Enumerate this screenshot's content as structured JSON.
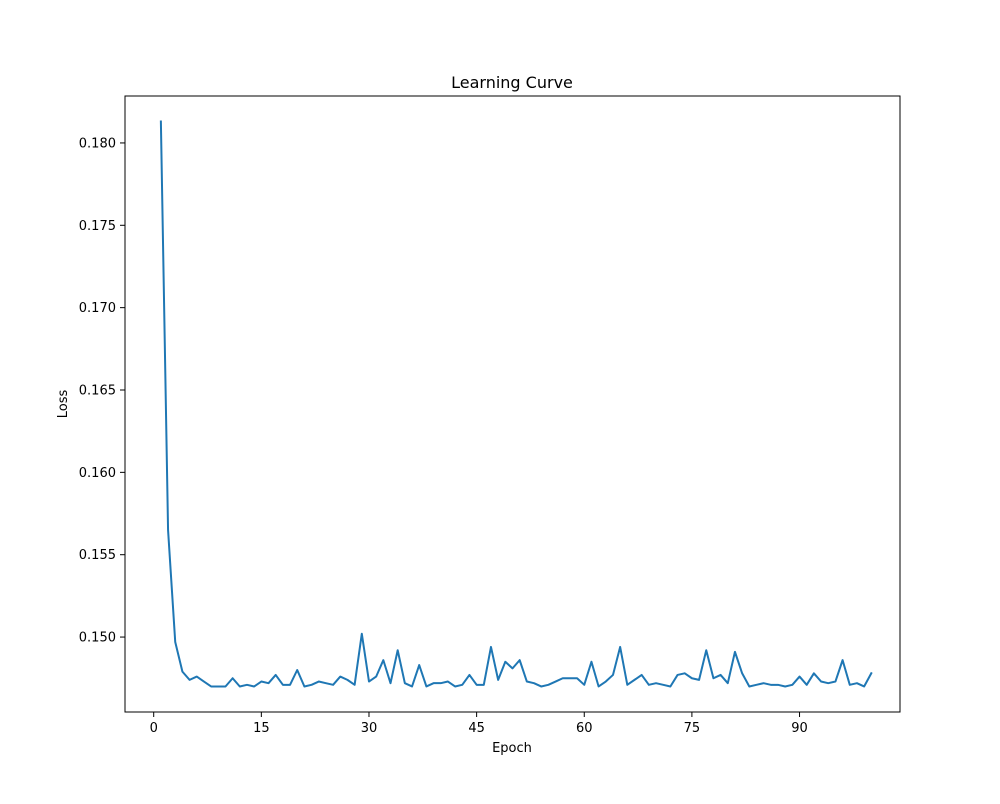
{
  "chart_data": {
    "type": "line",
    "title": "Learning Curve",
    "xlabel": "Epoch",
    "ylabel": "Loss",
    "xlim": [
      -4.0,
      104.0
    ],
    "ylim": [
      0.14545,
      0.18285
    ],
    "xticks": [
      0,
      15,
      30,
      45,
      60,
      75,
      90
    ],
    "yticks": [
      0.15,
      0.155,
      0.16,
      0.165,
      0.17,
      0.175,
      0.18
    ],
    "grid": false,
    "colors": {
      "line": "#1f77b4"
    },
    "series": [
      {
        "x": [
          1,
          2,
          3,
          4,
          5,
          6,
          7,
          8,
          9,
          10,
          11,
          12,
          13,
          14,
          15,
          16,
          17,
          18,
          19,
          20,
          21,
          22,
          23,
          24,
          25,
          26,
          27,
          28,
          29,
          30,
          31,
          32,
          33,
          34,
          35,
          36,
          37,
          38,
          39,
          40,
          41,
          42,
          43,
          44,
          45,
          46,
          47,
          48,
          49,
          50,
          51,
          52,
          53,
          54,
          55,
          56,
          57,
          58,
          59,
          60,
          61,
          62,
          63,
          64,
          65,
          66,
          67,
          68,
          69,
          70,
          71,
          72,
          73,
          74,
          75,
          76,
          77,
          78,
          79,
          80,
          81,
          82,
          83,
          84,
          85,
          86,
          87,
          88,
          89,
          90,
          91,
          92,
          93,
          94,
          95,
          96,
          97,
          98,
          99,
          100
        ],
        "y": [
          0.1813,
          0.1565,
          0.1497,
          0.1479,
          0.1474,
          0.1476,
          0.1473,
          0.147,
          0.147,
          0.147,
          0.1475,
          0.147,
          0.1471,
          0.147,
          0.1473,
          0.1472,
          0.1477,
          0.1471,
          0.1471,
          0.148,
          0.147,
          0.1471,
          0.1473,
          0.1472,
          0.1471,
          0.1476,
          0.1474,
          0.1471,
          0.1502,
          0.1473,
          0.1476,
          0.1486,
          0.1472,
          0.1492,
          0.1472,
          0.147,
          0.1483,
          0.147,
          0.1472,
          0.1472,
          0.1473,
          0.147,
          0.1471,
          0.1477,
          0.1471,
          0.1471,
          0.1494,
          0.1474,
          0.1485,
          0.1481,
          0.1486,
          0.1473,
          0.1472,
          0.147,
          0.1471,
          0.1473,
          0.1475,
          0.1475,
          0.1475,
          0.1471,
          0.1485,
          0.147,
          0.1473,
          0.1477,
          0.1494,
          0.1471,
          0.1474,
          0.1477,
          0.1471,
          0.1472,
          0.1471,
          0.147,
          0.1477,
          0.1478,
          0.1475,
          0.1474,
          0.1492,
          0.1475,
          0.1477,
          0.1472,
          0.1491,
          0.1478,
          0.147,
          0.1471,
          0.1472,
          0.1471,
          0.1471,
          0.147,
          0.1471,
          0.1476,
          0.1471,
          0.1478,
          0.1473,
          0.1472,
          0.1473,
          0.1486,
          0.1471,
          0.1472,
          0.147,
          0.1478
        ]
      }
    ]
  }
}
